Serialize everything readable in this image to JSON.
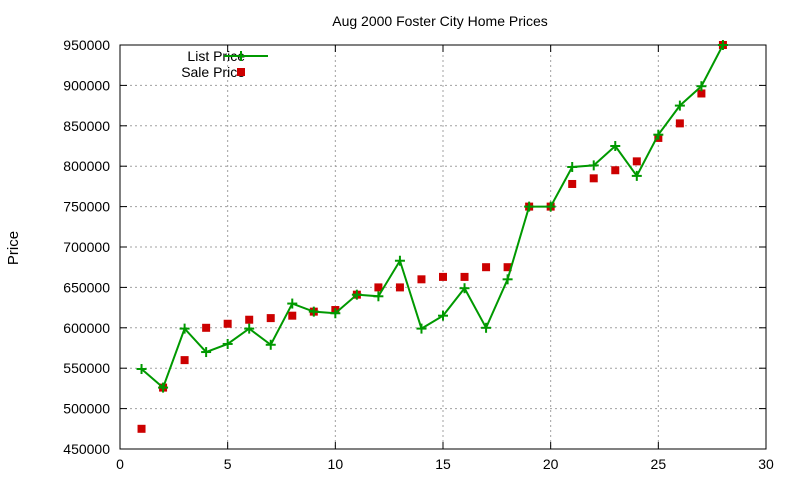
{
  "chart_data": {
    "type": "line",
    "title": "Aug 2000 Foster City Home Prices",
    "xlabel": "",
    "ylabel": "Price",
    "xlim": [
      0,
      30
    ],
    "ylim": [
      450000,
      950000
    ],
    "grid": true,
    "legend_position": "top-left",
    "x_ticks": [
      0,
      5,
      10,
      15,
      20,
      25,
      30
    ],
    "y_ticks": [
      450000,
      500000,
      550000,
      600000,
      650000,
      700000,
      750000,
      800000,
      850000,
      900000,
      950000
    ],
    "series": [
      {
        "name": "List Price",
        "style": "line-with-plus-markers",
        "color": "#009900",
        "points": [
          [
            1,
            549000
          ],
          [
            2,
            526000
          ],
          [
            3,
            599000
          ],
          [
            4,
            570000
          ],
          [
            5,
            580000
          ],
          [
            6,
            599000
          ],
          [
            7,
            579000
          ],
          [
            8,
            630000
          ],
          [
            9,
            620000
          ],
          [
            10,
            618000
          ],
          [
            11,
            641000
          ],
          [
            12,
            639000
          ],
          [
            13,
            683000
          ],
          [
            14,
            599000
          ],
          [
            15,
            615000
          ],
          [
            16,
            649000
          ],
          [
            17,
            600000
          ],
          [
            18,
            660000
          ],
          [
            19,
            750000
          ],
          [
            20,
            750000
          ],
          [
            21,
            799000
          ],
          [
            22,
            801000
          ],
          [
            23,
            825000
          ],
          [
            24,
            788000
          ],
          [
            25,
            839000
          ],
          [
            26,
            875000
          ],
          [
            27,
            899000
          ],
          [
            28,
            950000
          ]
        ]
      },
      {
        "name": "Sale Price",
        "style": "square-markers",
        "color": "#cc0000",
        "points": [
          [
            1,
            475000
          ],
          [
            2,
            526000
          ],
          [
            3,
            560000
          ],
          [
            4,
            600000
          ],
          [
            5,
            605000
          ],
          [
            6,
            610000
          ],
          [
            7,
            612000
          ],
          [
            8,
            615000
          ],
          [
            9,
            620000
          ],
          [
            10,
            622000
          ],
          [
            11,
            641000
          ],
          [
            12,
            650000
          ],
          [
            13,
            650000
          ],
          [
            14,
            660000
          ],
          [
            15,
            663000
          ],
          [
            16,
            663000
          ],
          [
            17,
            675000
          ],
          [
            18,
            675000
          ],
          [
            19,
            750000
          ],
          [
            20,
            750000
          ],
          [
            21,
            778000
          ],
          [
            22,
            785000
          ],
          [
            23,
            795000
          ],
          [
            24,
            806000
          ],
          [
            25,
            835000
          ],
          [
            26,
            853000
          ],
          [
            27,
            890000
          ],
          [
            28,
            950000
          ]
        ]
      }
    ]
  }
}
